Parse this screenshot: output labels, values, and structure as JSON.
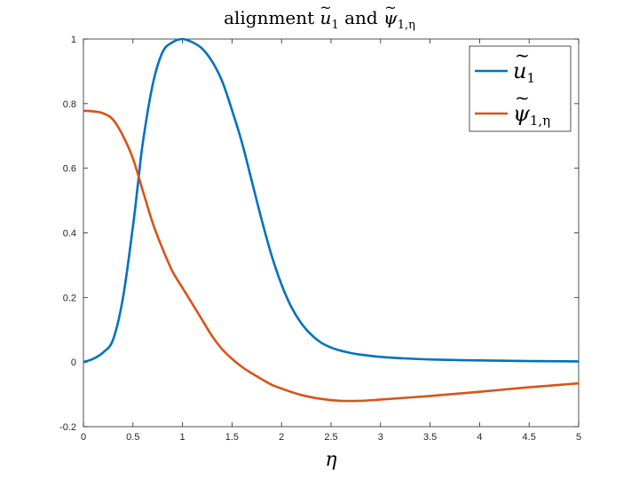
{
  "chart_data": {
    "type": "line",
    "title": "alignment ũ₁ and ψ̃₁,η",
    "title_parts": {
      "prefix": "alignment ",
      "u": "u",
      "u_sub": "1",
      "conj": " and ",
      "psi": "ψ",
      "psi_sub": "1,η",
      "tilde": "~"
    },
    "xlabel": "η",
    "ylabel": "",
    "xlim": [
      0,
      5
    ],
    "ylim": [
      -0.2,
      1
    ],
    "x_ticks": [
      0,
      0.5,
      1,
      1.5,
      2,
      2.5,
      3,
      3.5,
      4,
      4.5,
      5
    ],
    "x_tick_labels": [
      "0",
      "0.5",
      "1",
      "1.5",
      "2",
      "2.5",
      "3",
      "3.5",
      "4",
      "4.5",
      "5"
    ],
    "y_ticks": [
      -0.2,
      0,
      0.2,
      0.4,
      0.6,
      0.8,
      1
    ],
    "y_tick_labels": [
      "-0.2",
      "0",
      "0.2",
      "0.4",
      "0.6",
      "0.8",
      "1"
    ],
    "grid": false,
    "legend_position": "top-right",
    "series": [
      {
        "name": "ũ₁",
        "legend_base": "u",
        "legend_sub": "1",
        "color": "#0072BD",
        "x": [
          0,
          0.1,
          0.2,
          0.3,
          0.4,
          0.5,
          0.55,
          0.6,
          0.7,
          0.8,
          0.9,
          1.0,
          1.1,
          1.2,
          1.3,
          1.4,
          1.5,
          1.6,
          1.7,
          1.8,
          1.9,
          2.0,
          2.1,
          2.2,
          2.3,
          2.4,
          2.5,
          2.6,
          2.7,
          2.8,
          3.0,
          3.2,
          3.5,
          4.0,
          4.5,
          5.0
        ],
        "y": [
          0,
          0.01,
          0.03,
          0.07,
          0.2,
          0.42,
          0.55,
          0.68,
          0.86,
          0.96,
          0.99,
          1.0,
          0.99,
          0.97,
          0.93,
          0.87,
          0.78,
          0.68,
          0.56,
          0.44,
          0.33,
          0.24,
          0.17,
          0.12,
          0.085,
          0.06,
          0.045,
          0.035,
          0.028,
          0.023,
          0.016,
          0.012,
          0.008,
          0.005,
          0.003,
          0.002
        ]
      },
      {
        "name": "ψ̃₁,η",
        "legend_base": "ψ",
        "legend_sub": "1,η",
        "color": "#D95319",
        "x": [
          0,
          0.1,
          0.2,
          0.3,
          0.4,
          0.5,
          0.6,
          0.7,
          0.8,
          0.9,
          1.0,
          1.1,
          1.2,
          1.3,
          1.4,
          1.5,
          1.6,
          1.7,
          1.8,
          1.9,
          2.0,
          2.2,
          2.4,
          2.6,
          2.8,
          3.0,
          3.5,
          4.0,
          4.5,
          5.0
        ],
        "y": [
          0.778,
          0.776,
          0.77,
          0.75,
          0.7,
          0.63,
          0.53,
          0.43,
          0.35,
          0.28,
          0.23,
          0.18,
          0.13,
          0.08,
          0.04,
          0.01,
          -0.015,
          -0.035,
          -0.053,
          -0.07,
          -0.082,
          -0.102,
          -0.114,
          -0.12,
          -0.12,
          -0.116,
          -0.105,
          -0.092,
          -0.078,
          -0.066
        ]
      }
    ]
  }
}
